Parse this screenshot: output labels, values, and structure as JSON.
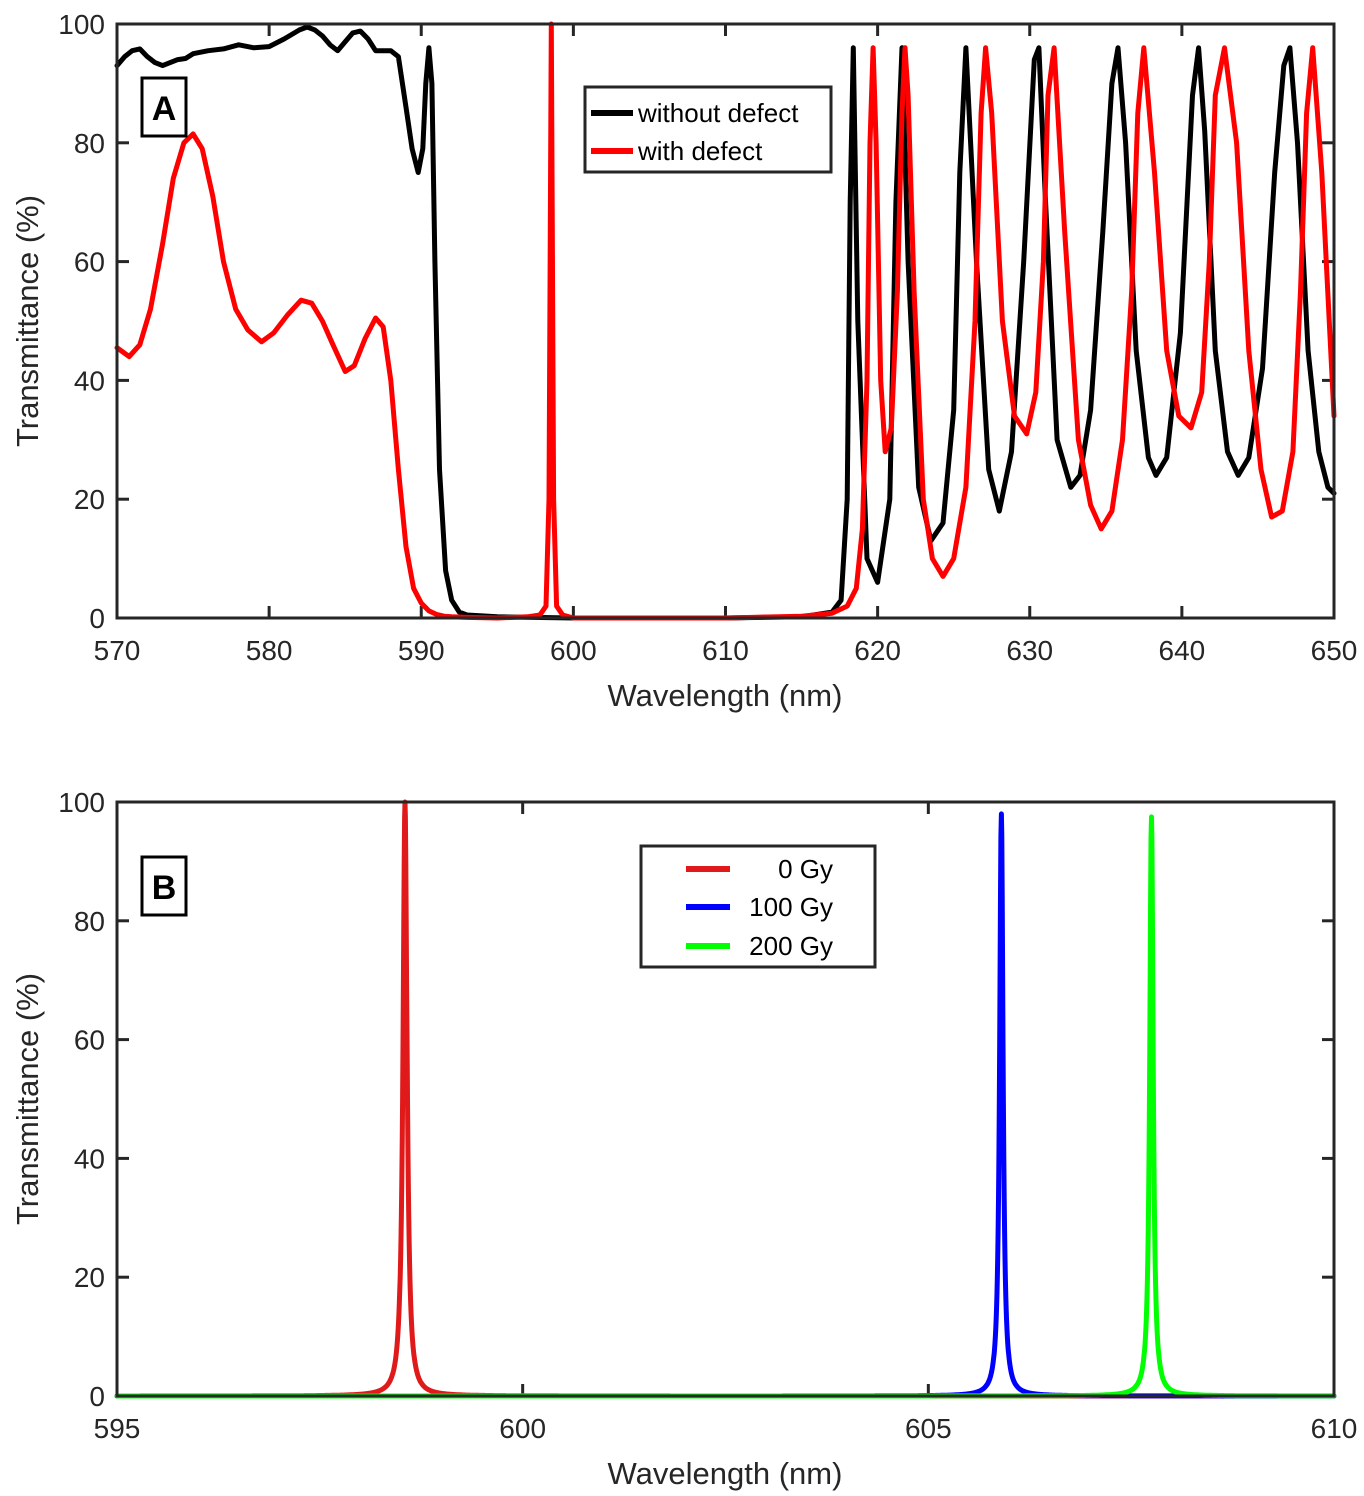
{
  "chart_data": [
    {
      "type": "line",
      "panel_label": "A",
      "xlabel": "Wavelength (nm)",
      "ylabel": "Transmittance (%)",
      "xlim": [
        570,
        650
      ],
      "ylim": [
        0,
        100
      ],
      "xticks": [
        "570",
        "580",
        "590",
        "600",
        "610",
        "620",
        "630",
        "640",
        "650"
      ],
      "yticks": [
        "0",
        "20",
        "40",
        "60",
        "80",
        "100"
      ],
      "grid": false,
      "legend_position": "top-right",
      "series": [
        {
          "name": "without defect",
          "color": "#000000",
          "x": [
            570,
            570.5,
            571,
            571.5,
            572,
            572.5,
            573,
            573.5,
            574,
            574.5,
            575,
            576,
            577,
            578,
            579,
            580,
            581,
            582,
            582.5,
            583,
            583.5,
            584,
            584.5,
            585,
            585.5,
            586,
            586.5,
            587,
            588,
            588.5,
            589,
            589.4,
            589.8,
            590.1,
            590.3,
            590.5,
            590.7,
            590.9,
            591.2,
            591.6,
            592,
            592.5,
            593,
            595,
            600,
            605,
            610,
            615,
            617,
            617.6,
            618,
            618.2,
            618.4,
            618.7,
            619.3,
            620,
            620.8,
            621.2,
            621.6,
            622,
            622.7,
            623.5,
            624.3,
            625,
            625.4,
            625.8,
            626.5,
            627.3,
            628,
            628.8,
            629.6,
            630.3,
            630.6,
            631,
            631.8,
            632.7,
            633.3,
            634,
            634.8,
            635.4,
            635.8,
            636.3,
            637,
            637.8,
            638.3,
            639,
            639.9,
            640.7,
            641.1,
            641.5,
            642.2,
            643,
            643.7,
            644.4,
            645.3,
            646.1,
            646.7,
            647.1,
            647.6,
            648.3,
            649,
            649.6,
            650
          ],
          "y": [
            93,
            94.5,
            95.5,
            95.8,
            94.5,
            93.5,
            93,
            93.5,
            94,
            94.2,
            95,
            95.5,
            95.8,
            96.5,
            96,
            96.2,
            97.5,
            99,
            99.5,
            99,
            98,
            96.5,
            95.5,
            97,
            98.5,
            98.8,
            97.5,
            95.5,
            95.5,
            94.5,
            86,
            79,
            75,
            79,
            90,
            96,
            90,
            60,
            25,
            8,
            3,
            1,
            0.5,
            0.2,
            0,
            0,
            0,
            0.2,
            1,
            3,
            20,
            70,
            96,
            50,
            10,
            6,
            20,
            70,
            96,
            60,
            22,
            13,
            16,
            35,
            75,
            96,
            60,
            25,
            18,
            28,
            60,
            94,
            96,
            72,
            30,
            22,
            24,
            35,
            65,
            90,
            96,
            80,
            45,
            27,
            24,
            27,
            48,
            88,
            96,
            82,
            45,
            28,
            24,
            27,
            42,
            75,
            93,
            96,
            80,
            45,
            28,
            22,
            21
          ]
        },
        {
          "name": "with defect",
          "color": "#ff0000",
          "x": [
            570,
            570.8,
            571.5,
            572.2,
            573,
            573.7,
            574.4,
            575,
            575.6,
            576.3,
            577,
            577.8,
            578.6,
            579.5,
            580.3,
            581.2,
            582.1,
            582.8,
            583.5,
            584.2,
            585,
            585.6,
            586.3,
            587,
            587.5,
            588,
            588.5,
            589,
            589.5,
            590,
            590.5,
            591,
            591.5,
            592,
            593,
            595,
            597,
            597.8,
            598.2,
            598.4,
            598.55,
            598.7,
            598.9,
            599.3,
            600,
            605,
            610,
            615,
            617,
            618,
            618.6,
            619,
            619.3,
            619.5,
            619.7,
            619.9,
            620.2,
            620.5,
            620.9,
            621.3,
            621.6,
            621.8,
            622,
            622.4,
            623,
            623.6,
            624.3,
            625,
            625.8,
            626.4,
            626.8,
            627.1,
            627.5,
            628.2,
            629,
            629.8,
            630.4,
            630.9,
            631.2,
            631.6,
            632.3,
            633.2,
            634,
            634.7,
            635.4,
            636.1,
            636.7,
            637.1,
            637.5,
            638.2,
            639,
            639.8,
            640.6,
            641.3,
            641.8,
            642.2,
            642.8,
            643.6,
            644.4,
            645.2,
            645.9,
            646.6,
            647.3,
            647.8,
            648.2,
            648.6,
            649.2,
            650
          ],
          "y": [
            45.5,
            44,
            46,
            52,
            63,
            74,
            80,
            81.5,
            79,
            71,
            60,
            52,
            48.5,
            46.5,
            48,
            51,
            53.5,
            53,
            50,
            46,
            41.5,
            42.5,
            47,
            50.5,
            49,
            40,
            25,
            12,
            5,
            2.5,
            1.2,
            0.6,
            0.3,
            0.2,
            0.1,
            0,
            0.2,
            0.5,
            2,
            20,
            100,
            20,
            2,
            0.5,
            0,
            0,
            0,
            0.3,
            0.8,
            2,
            5,
            15,
            40,
            80,
            96,
            80,
            40,
            28,
            32,
            55,
            85,
            96,
            88,
            55,
            20,
            10,
            7,
            10,
            22,
            50,
            85,
            96,
            85,
            50,
            34,
            31,
            38,
            60,
            88,
            96,
            65,
            30,
            19,
            15,
            18,
            30,
            55,
            85,
            96,
            75,
            45,
            34,
            32,
            38,
            60,
            88,
            96,
            80,
            45,
            25,
            17,
            18,
            28,
            55,
            85,
            96,
            75,
            34
          ]
        }
      ]
    },
    {
      "type": "line",
      "panel_label": "B",
      "xlabel": "Wavelength (nm)",
      "ylabel": "Transmittance (%)",
      "xlim": [
        595,
        610
      ],
      "ylim": [
        0,
        100
      ],
      "xticks": [
        "595",
        "600",
        "605",
        "610"
      ],
      "yticks": [
        "0",
        "20",
        "40",
        "60",
        "80",
        "100"
      ],
      "grid": false,
      "legend_position": "top-center",
      "series": [
        {
          "name": "0 Gy",
          "color": "#e01a1a",
          "peak_x": 598.55,
          "peak_y": 100,
          "hwhm": 0.03
        },
        {
          "name": "100 Gy",
          "color": "#0000ff",
          "peak_x": 605.9,
          "peak_y": 98,
          "hwhm": 0.025
        },
        {
          "name": "200 Gy",
          "color": "#00ff00",
          "peak_x": 607.75,
          "peak_y": 97.5,
          "hwhm": 0.025
        }
      ]
    }
  ]
}
